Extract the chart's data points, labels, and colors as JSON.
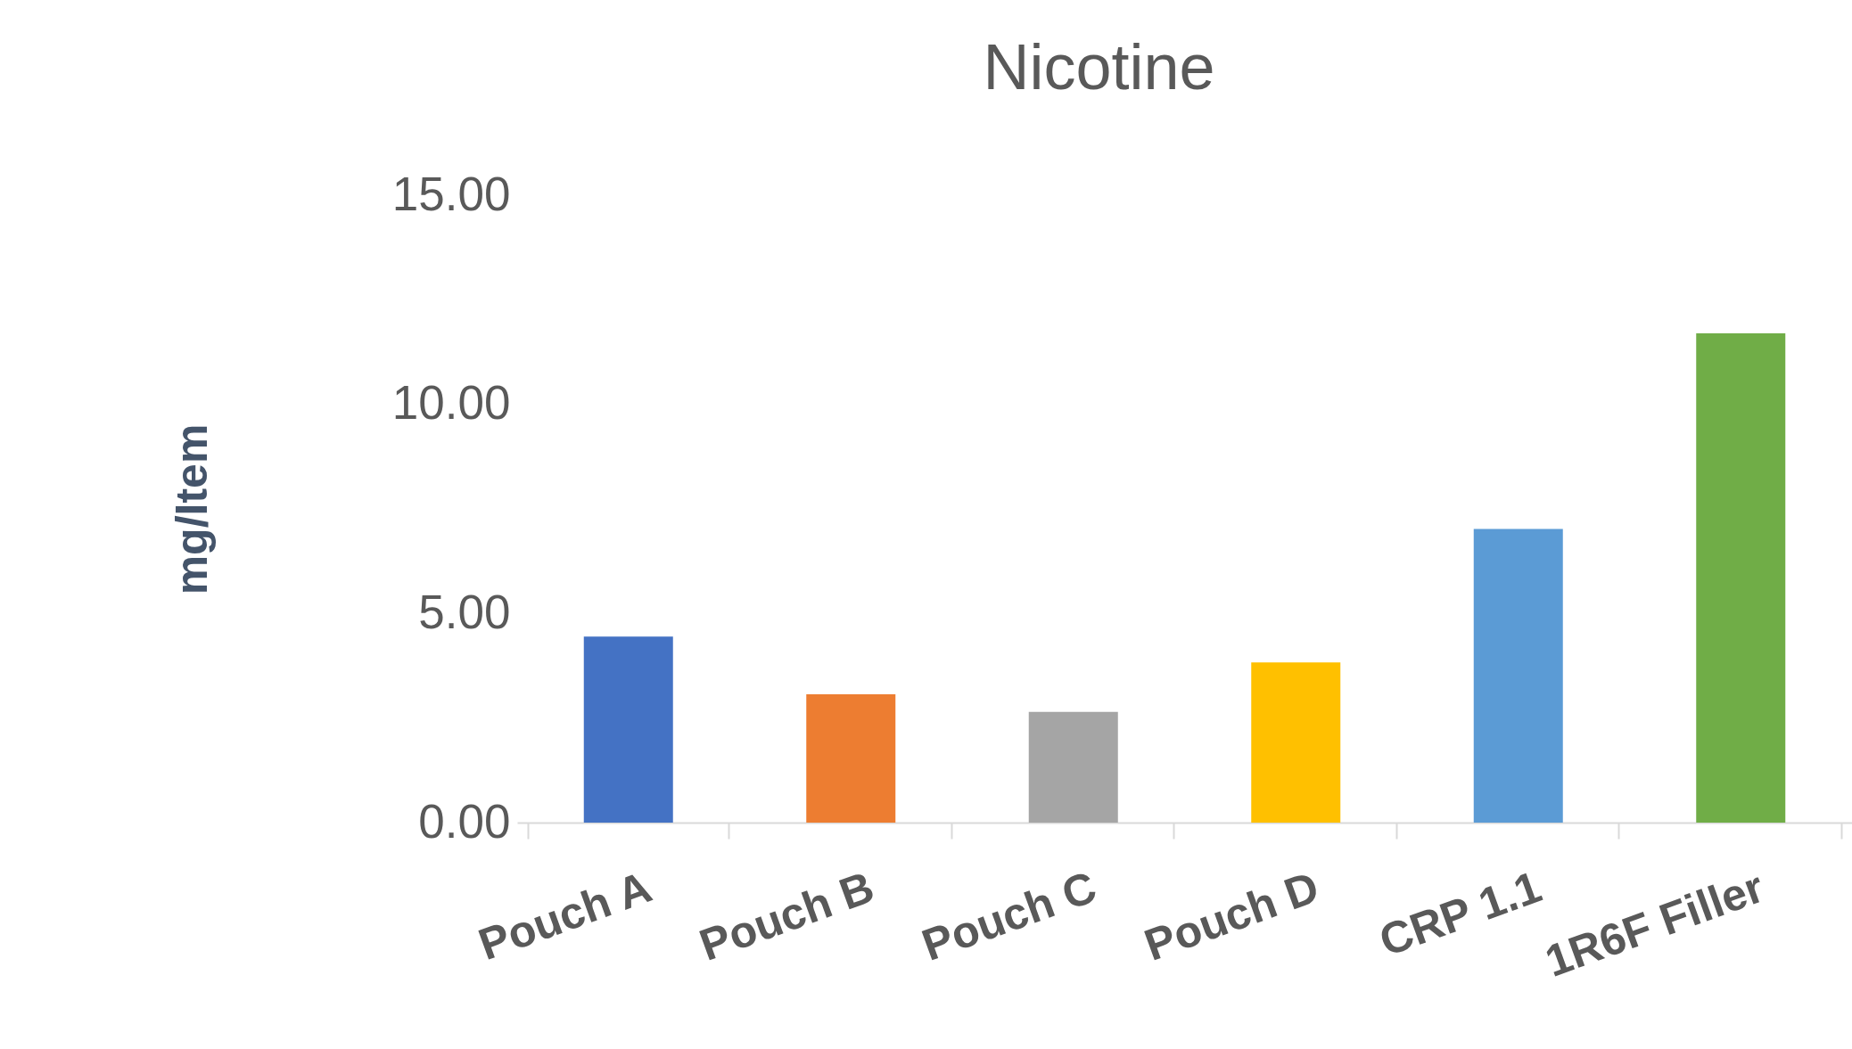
{
  "chart_data": {
    "type": "bar",
    "title": "Nicotine",
    "ylabel": "mg/Item",
    "categories": [
      "Pouch A",
      "Pouch B",
      "Pouch C",
      "Pouch D",
      "CRP 1.1",
      "1R6F Filler"
    ],
    "values": [
      4.45,
      3.07,
      2.65,
      3.83,
      7.02,
      11.7
    ],
    "colors": [
      "#4472c4",
      "#ed7d31",
      "#a5a5a5",
      "#ffc000",
      "#5b9bd5",
      "#70ad47"
    ],
    "ylim": [
      0,
      15
    ],
    "yticks": [
      {
        "value": 0,
        "label": "0.00"
      },
      {
        "value": 5,
        "label": "5.00"
      },
      {
        "value": 10,
        "label": "10.00"
      },
      {
        "value": 15,
        "label": "15.00"
      }
    ],
    "grid": false
  }
}
